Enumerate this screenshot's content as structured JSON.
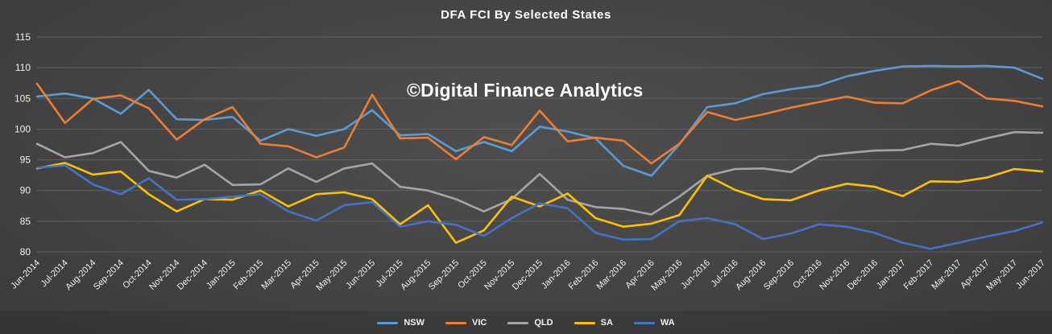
{
  "title": "DFA FCI By Selected States",
  "watermark": "©Digital Finance Analytics",
  "colors": {
    "background": "#444444",
    "gridline": "#616161",
    "tick_text": "#f0f0f0",
    "title_text": "#ffffff"
  },
  "chart_data": {
    "type": "line",
    "title": "DFA FCI By Selected States",
    "xlabel": "",
    "ylabel": "",
    "ylim": [
      80,
      115
    ],
    "ytick_step": 5,
    "grid": true,
    "legend_position": "bottom",
    "categories": [
      "Jun-2014",
      "Jul-2014",
      "Aug-2014",
      "Sep-2014",
      "Oct-2014",
      "Nov-2014",
      "Dec-2014",
      "Jan-2015",
      "Feb-2015",
      "Mar-2015",
      "Apr-2015",
      "May-2015",
      "Jun-2015",
      "Jul-2015",
      "Aug-2015",
      "Sep-2015",
      "Oct-2015",
      "Nov-2015",
      "Dec-2015",
      "Jan-2016",
      "Feb-2016",
      "Mar-2016",
      "Apr-2016",
      "May-2016",
      "Jun-2016",
      "Jul-2016",
      "Aug-2016",
      "Sep-2016",
      "Oct-2016",
      "Nov-2016",
      "Dec-2016",
      "Jan-2017",
      "Feb-2017",
      "Mar-2017",
      "Apr-2017",
      "May-2017",
      "Jun-2017"
    ],
    "series": [
      {
        "name": "NSW",
        "color": "#5B9BD5",
        "values": [
          105.3,
          105.8,
          105.0,
          102.5,
          106.4,
          101.6,
          101.5,
          102.0,
          98.1,
          100.0,
          98.9,
          100.0,
          103.1,
          99.0,
          99.2,
          96.4,
          97.9,
          96.4,
          100.4,
          99.6,
          98.5,
          94.0,
          92.4,
          97.5,
          103.6,
          104.2,
          105.7,
          106.5,
          107.1,
          108.6,
          109.5,
          110.2,
          110.3,
          110.2,
          110.3,
          110.0,
          108.2
        ]
      },
      {
        "name": "VIC",
        "color": "#ED7D31",
        "values": [
          107.4,
          101.0,
          104.9,
          105.5,
          103.4,
          98.3,
          101.6,
          103.6,
          97.6,
          97.2,
          95.4,
          97.0,
          105.6,
          98.5,
          98.6,
          95.1,
          98.7,
          97.4,
          103.0,
          98.0,
          98.6,
          98.1,
          94.4,
          97.6,
          102.8,
          101.5,
          102.4,
          103.5,
          104.4,
          105.3,
          104.3,
          104.2,
          106.3,
          107.8,
          105.0,
          104.6,
          103.7
        ]
      },
      {
        "name": "QLD",
        "color": "#A5A5A5",
        "values": [
          97.6,
          95.4,
          96.1,
          97.9,
          93.2,
          92.1,
          94.2,
          90.9,
          91.0,
          93.6,
          91.4,
          93.6,
          94.4,
          90.6,
          90.0,
          88.6,
          86.6,
          88.6,
          92.7,
          88.5,
          87.3,
          87.0,
          86.1,
          89.0,
          92.4,
          93.5,
          93.6,
          93.0,
          95.6,
          96.1,
          96.5,
          96.6,
          97.6,
          97.3,
          98.5,
          99.5,
          99.4
        ]
      },
      {
        "name": "SA",
        "color": "#FFC000",
        "values": [
          93.6,
          94.5,
          92.6,
          93.1,
          89.4,
          86.6,
          88.6,
          88.5,
          90.0,
          87.4,
          89.4,
          89.7,
          88.6,
          84.5,
          87.6,
          81.5,
          83.5,
          89.0,
          87.4,
          89.5,
          85.5,
          84.1,
          84.6,
          86.0,
          92.4,
          90.1,
          88.6,
          88.4,
          90.0,
          91.1,
          90.6,
          89.1,
          91.5,
          91.4,
          92.1,
          93.5,
          93.1
        ]
      },
      {
        "name": "WA",
        "color": "#4472C4",
        "values": [
          93.7,
          94.1,
          91.0,
          89.4,
          92.0,
          88.5,
          88.6,
          89.0,
          89.4,
          86.6,
          85.1,
          87.6,
          88.1,
          84.1,
          85.0,
          84.4,
          82.6,
          85.5,
          87.9,
          87.1,
          83.1,
          82.0,
          82.1,
          85.0,
          85.5,
          84.5,
          82.1,
          83.0,
          84.5,
          84.1,
          83.1,
          81.5,
          80.5,
          81.5,
          82.5,
          83.4,
          84.8
        ]
      }
    ]
  }
}
